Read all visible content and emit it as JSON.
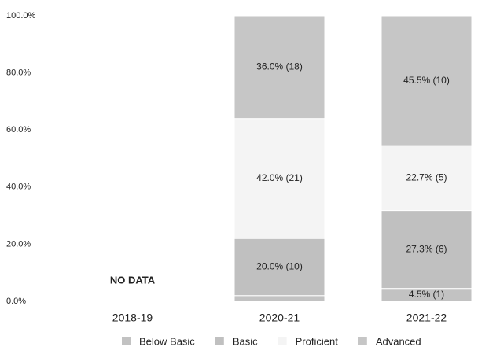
{
  "chart_data": {
    "type": "stacked_bar",
    "categories": [
      "2018-19",
      "2020-21",
      "2021-22"
    ],
    "series": [
      {
        "name": "Below Basic",
        "color": "#c2c2c2",
        "values": [
          null,
          2.0,
          4.5
        ],
        "value_labels": [
          null,
          null,
          "4.5% (1)"
        ]
      },
      {
        "name": "Basic",
        "color": "#c0c0c0",
        "values": [
          null,
          20.0,
          27.3
        ],
        "value_labels": [
          null,
          "20.0% (10)",
          "27.3% (6)"
        ]
      },
      {
        "name": "Proficient",
        "color": "#f4f4f4",
        "values": [
          null,
          42.0,
          22.7
        ],
        "value_labels": [
          null,
          "42.0% (21)",
          "22.7% (5)"
        ]
      },
      {
        "name": "Advanced",
        "color": "#c6c6c6",
        "values": [
          null,
          36.0,
          45.5
        ],
        "value_labels": [
          null,
          "36.0% (18)",
          "45.5% (10)"
        ]
      }
    ],
    "annotations": [
      "NO DATA"
    ],
    "ylim": [
      0,
      100
    ],
    "yticks": [
      {
        "value": 0,
        "label": "0.0%"
      },
      {
        "value": 20,
        "label": "20.0%"
      },
      {
        "value": 40,
        "label": "40.0%"
      },
      {
        "value": 60,
        "label": "60.0%"
      },
      {
        "value": 80,
        "label": "80.0%"
      },
      {
        "value": 100,
        "label": "100.0%"
      }
    ],
    "grid": false,
    "legend": "bottom"
  }
}
